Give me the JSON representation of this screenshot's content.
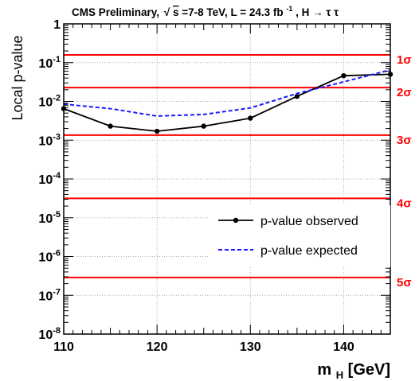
{
  "chart_data": {
    "type": "line",
    "title": {
      "prefix": "CMS  Preliminary,",
      "sqrt_symbol": "√",
      "sqrt_arg": "s",
      "energy": "=7-8 TeV, L = 24.3 fb",
      "lumi_exp": "-1",
      "channel": ", H → τ τ"
    },
    "xlabel": {
      "main": "m",
      "sub": "H",
      "unit": " [GeV]"
    },
    "ylabel": "Local p-value",
    "xlim": [
      110,
      145
    ],
    "ylim": [
      1e-08,
      1
    ],
    "yscale": "log",
    "grid": true,
    "x_ticks": [
      110,
      120,
      130,
      140
    ],
    "x_tick_labels": [
      "110",
      "120",
      "130",
      "140"
    ],
    "y_ticks": [
      {
        "value": 1,
        "base": "1",
        "exp": ""
      },
      {
        "value": 0.1,
        "base": "10",
        "exp": "-1"
      },
      {
        "value": 0.01,
        "base": "10",
        "exp": "-2"
      },
      {
        "value": 0.001,
        "base": "10",
        "exp": "-3"
      },
      {
        "value": 0.0001,
        "base": "10",
        "exp": "-4"
      },
      {
        "value": 1e-05,
        "base": "10",
        "exp": "-5"
      },
      {
        "value": 1e-06,
        "base": "10",
        "exp": "-6"
      },
      {
        "value": 1e-07,
        "base": "10",
        "exp": "-7"
      },
      {
        "value": 1e-08,
        "base": "10",
        "exp": "-8"
      }
    ],
    "sigma_lines": [
      {
        "label": "1σ",
        "value": 0.1587
      },
      {
        "label": "2σ",
        "value": 0.02275
      },
      {
        "label": "3σ",
        "value": 0.00135
      },
      {
        "label": "4σ",
        "value": 3.17e-05
      },
      {
        "label": "5σ",
        "value": 2.87e-07
      }
    ],
    "series": [
      {
        "name": "p-value observed",
        "style": "solid-markers",
        "color": "#000000",
        "x": [
          110,
          115,
          120,
          125,
          130,
          135,
          140,
          145
        ],
        "y": [
          0.0065,
          0.0023,
          0.0017,
          0.0023,
          0.0037,
          0.0135,
          0.046,
          0.05
        ]
      },
      {
        "name": "p-value expected",
        "style": "dashed",
        "color": "#1a1aff",
        "x": [
          110,
          115,
          120,
          125,
          130,
          135,
          140,
          145
        ],
        "y": [
          0.0085,
          0.0065,
          0.0042,
          0.0046,
          0.0068,
          0.016,
          0.032,
          0.065
        ]
      }
    ],
    "legend_position": "lower-right",
    "colors": {
      "sigma_line": "#ff0000",
      "sigma_label": "#ff0000",
      "grid": "#aaaaaa"
    }
  }
}
